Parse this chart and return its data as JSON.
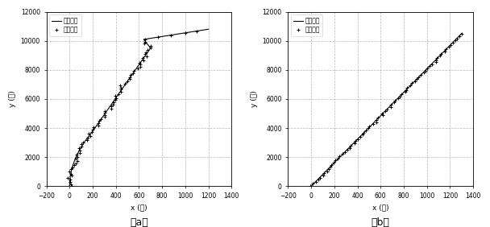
{
  "title_a": "（a）",
  "title_b": "（b）",
  "xlabel_a": "x (米)",
  "xlabel_b": "x (米)",
  "ylabel_a": "y (米)",
  "ylabel_b": "y (米)",
  "legend_line1": "测速轨迹",
  "legend_line2": "滤波数据",
  "xlim": [
    -200,
    1400
  ],
  "ylim": [
    0,
    12000
  ],
  "xticks": [
    -200,
    0,
    200,
    400,
    600,
    800,
    1000,
    1200,
    1400
  ],
  "yticks": [
    0,
    2000,
    4000,
    6000,
    8000,
    10000,
    12000
  ],
  "line_color": "#000000",
  "background": "#ffffff",
  "grid_color": "#888888",
  "grid_style": "--",
  "figsize": [
    6.08,
    2.82
  ],
  "dpi": 100
}
